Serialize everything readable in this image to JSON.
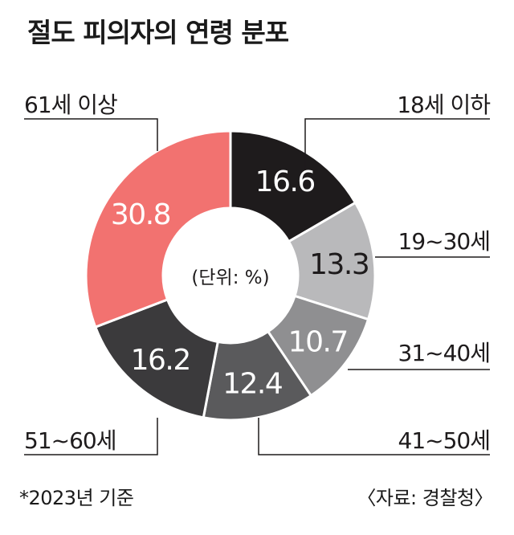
{
  "title": "절도 피의자의 연령 분포",
  "unit_label": "(단위: %)",
  "footnote": "*2023년 기준",
  "source": "〈자료: 경찰청〉",
  "chart_data": {
    "type": "pie",
    "title": "절도 피의자의 연령 분포",
    "unit": "%",
    "categories": [
      "18세 이하",
      "19~30세",
      "31~40세",
      "41~50세",
      "51~60세",
      "61세 이상"
    ],
    "values": [
      16.6,
      13.3,
      10.7,
      12.4,
      16.2,
      30.8
    ],
    "value_labels": [
      "16.6",
      "13.3",
      "10.7",
      "12.4",
      "16.2",
      "30.8"
    ],
    "colors": [
      "#1e1b1c",
      "#b9b9bb",
      "#8f8f91",
      "#5a5a5c",
      "#3b3a3c",
      "#f27270"
    ],
    "label_colors": [
      "#ffffff",
      "#1e1b1c",
      "#ffffff",
      "#ffffff",
      "#ffffff",
      "#ffffff"
    ],
    "donut": true,
    "start": "top, clockwise"
  }
}
